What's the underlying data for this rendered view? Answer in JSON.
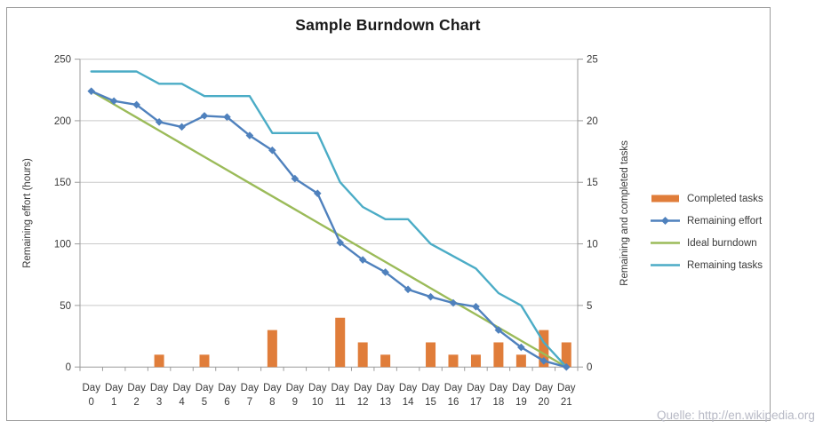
{
  "title": "Sample Burndown Chart",
  "watermark": "Quelle: http://en.wikipedia.org",
  "colors": {
    "completed_tasks": "#E07D3A",
    "remaining_effort": "#4F81BD",
    "ideal_burndown": "#9BBB59",
    "remaining_tasks": "#4BACC6",
    "gridline": "#C9C9C9",
    "axis_line": "#9B9B9B",
    "text": "#3A3A3A",
    "watermark_text": "#B7B9C5",
    "chart_border": "#9C9C9C"
  },
  "left_axis": {
    "title": "Remaining effort (hours)",
    "tick_labels": [
      "0",
      "50",
      "100",
      "150",
      "200",
      "250"
    ],
    "range": [
      0,
      250
    ]
  },
  "right_axis": {
    "title": "Remaining and completed tasks",
    "tick_labels": [
      "0",
      "5",
      "10",
      "15",
      "20",
      "25"
    ],
    "range": [
      0,
      25
    ]
  },
  "x_axis": {
    "word": "Day",
    "days": [
      "0",
      "1",
      "2",
      "3",
      "4",
      "5",
      "6",
      "7",
      "8",
      "9",
      "10",
      "11",
      "12",
      "13",
      "14",
      "15",
      "16",
      "17",
      "18",
      "19",
      "20",
      "21"
    ]
  },
  "chart_data": {
    "type": "combo",
    "title": "Sample Burndown Chart",
    "categories": [
      "Day 0",
      "Day 1",
      "Day 2",
      "Day 3",
      "Day 4",
      "Day 5",
      "Day 6",
      "Day 7",
      "Day 8",
      "Day 9",
      "Day 10",
      "Day 11",
      "Day 12",
      "Day 13",
      "Day 14",
      "Day 15",
      "Day 16",
      "Day 17",
      "Day 18",
      "Day 19",
      "Day 20",
      "Day 21"
    ],
    "ylabel_left": "Remaining effort (hours)",
    "ylabel_right": "Remaining and completed tasks",
    "ylim_left": [
      0,
      250
    ],
    "ylim_right": [
      0,
      25
    ],
    "grid": "horizontal",
    "legend_position": "right-middle",
    "series": [
      {
        "name": "Completed tasks",
        "type": "bar",
        "axis": "right",
        "color_key": "completed_tasks",
        "values": [
          0,
          0,
          0,
          1,
          0,
          1,
          0,
          0,
          3,
          0,
          0,
          4,
          2,
          1,
          0,
          2,
          1,
          1,
          2,
          1,
          3,
          2
        ]
      },
      {
        "name": "Remaining effort",
        "type": "line",
        "marker": "diamond",
        "axis": "left",
        "color_key": "remaining_effort",
        "values": [
          224,
          216,
          213,
          199,
          195,
          204,
          203,
          188,
          176,
          153,
          141,
          101,
          87,
          77,
          63,
          57,
          52,
          49,
          30,
          16,
          5,
          0
        ]
      },
      {
        "name": "Ideal burndown",
        "type": "line",
        "axis": "left",
        "color_key": "ideal_burndown",
        "values": [
          224,
          213.33,
          202.67,
          192,
          181.33,
          170.67,
          160,
          149.33,
          138.67,
          128,
          117.33,
          106.67,
          96,
          85.33,
          74.67,
          64,
          53.33,
          42.67,
          32,
          21.33,
          10.67,
          0
        ]
      },
      {
        "name": "Remaining tasks",
        "type": "line",
        "axis": "right",
        "color_key": "remaining_tasks",
        "values": [
          24,
          24,
          24,
          23,
          23,
          22,
          22,
          22,
          19,
          19,
          19,
          15,
          13,
          12,
          12,
          10,
          9,
          8,
          6,
          5,
          2,
          0
        ]
      }
    ]
  }
}
